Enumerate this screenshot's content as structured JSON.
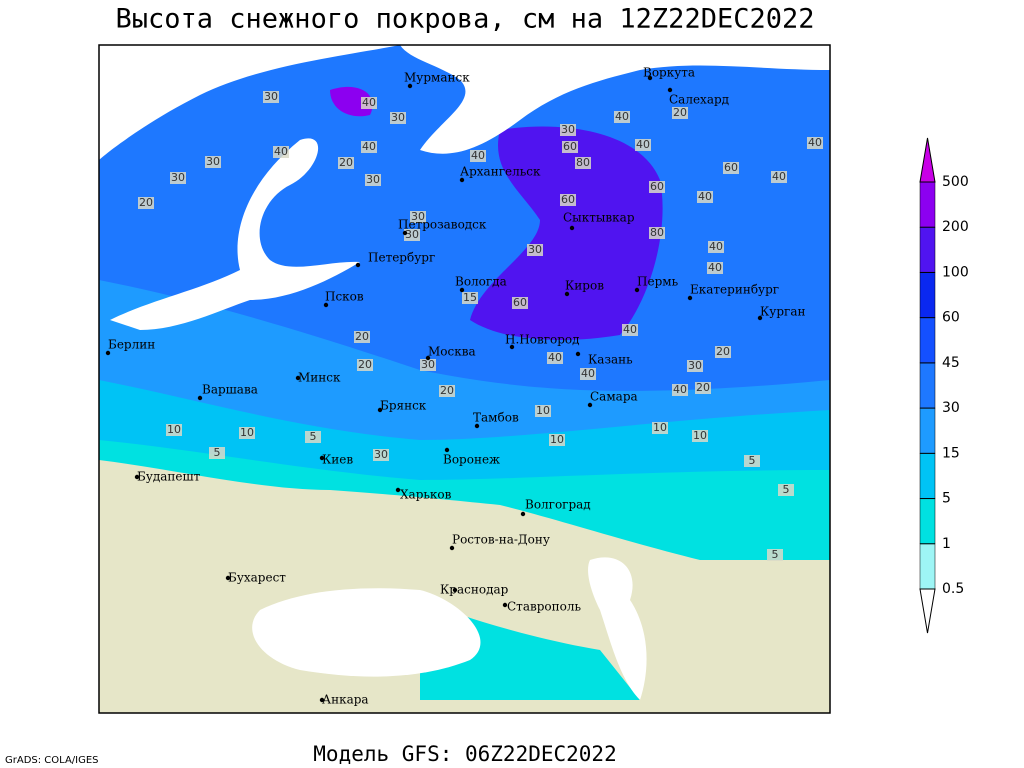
{
  "header": {
    "title": "Высота снежного покрова, см на 12Z22DEC2022"
  },
  "footer": {
    "model": "Модель GFS: 06Z22DEC2022",
    "credit": "GrADS: COLA/IGES"
  },
  "colorbar": {
    "levels": [
      0.5,
      1,
      5,
      15,
      30,
      45,
      60,
      100,
      200,
      500
    ],
    "colors": [
      "#ffffff",
      "#9ef5f5",
      "#00e1e1",
      "#00c3f5",
      "#1e9bff",
      "#1e78ff",
      "#1450ff",
      "#0a28f0",
      "#5014f0",
      "#8c00f0",
      "#c800e6"
    ]
  },
  "cities": [
    "Мурманск",
    "Воркута",
    "Салехард",
    "Архангельск",
    "Сыктывкар",
    "Петрозаводск",
    "Петербург",
    "Вологда",
    "Киров",
    "Пермь",
    "Екатеринбург",
    "Курган",
    "Псков",
    "Берлин",
    "Москва",
    "Н.Новгород",
    "Казань",
    "Минск",
    "Варшава",
    "Самара",
    "Брянск",
    "Тамбов",
    "Киев",
    "Воронеж",
    "Будапешт",
    "Харьков",
    "Волгоград",
    "Ростов-на-Дону",
    "Бухарест",
    "Краснодар",
    "Ставрополь",
    "Анкара"
  ],
  "contour_labels": [
    30,
    40,
    30,
    30,
    30,
    20,
    40,
    20,
    40,
    30,
    40,
    30,
    60,
    80,
    40,
    40,
    20,
    60,
    40,
    60,
    40,
    40,
    60,
    30,
    30,
    30,
    80,
    40,
    40,
    60,
    15,
    40,
    20,
    20,
    30,
    40,
    40,
    20,
    30,
    40,
    20,
    20,
    10,
    10,
    10,
    30,
    10,
    5,
    5,
    10,
    10,
    5,
    5,
    5
  ]
}
